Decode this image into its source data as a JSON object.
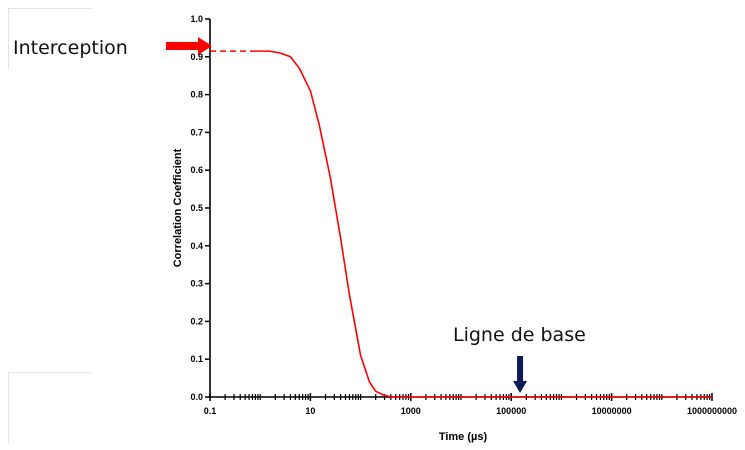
{
  "chart_data": {
    "type": "line",
    "xlabel": "Time (µs)",
    "ylabel": "Correlation Coefficient",
    "x_scale": "log",
    "xlim": [
      0.1,
      1000000000
    ],
    "ylim": [
      0.0,
      1.0
    ],
    "x_ticks": [
      0.1,
      10,
      1000,
      100000,
      10000000,
      1000000000
    ],
    "x_tick_labels": [
      "0.1",
      "10",
      "1000",
      "100000",
      "10000000",
      "1000000000"
    ],
    "y_ticks": [
      0.0,
      0.1,
      0.2,
      0.3,
      0.4,
      0.5,
      0.6,
      0.7,
      0.8,
      0.9,
      1.0
    ],
    "y_tick_labels": [
      "0.0",
      "0.1",
      "0.2",
      "0.3",
      "0.4",
      "0.5",
      "0.6",
      "0.7",
      "0.8",
      "0.9",
      "1.0"
    ],
    "grid": false,
    "series": [
      {
        "color": "#ff0000",
        "dashed_segment": {
          "x": [
            0.1,
            0.8
          ],
          "y": [
            0.915,
            0.915
          ]
        },
        "x": [
          0.8,
          1.5,
          2.5,
          4,
          6,
          10,
          15,
          25,
          40,
          60,
          100,
          150,
          200,
          300,
          400,
          500,
          700,
          1000,
          1000000000
        ],
        "y": [
          0.915,
          0.915,
          0.91,
          0.9,
          0.87,
          0.81,
          0.72,
          0.58,
          0.42,
          0.27,
          0.11,
          0.04,
          0.015,
          0.004,
          0.001,
          0.0,
          0.0,
          0.0,
          0.0
        ]
      }
    ]
  },
  "annotations": {
    "intercept": {
      "label": "Interception",
      "arrow_color": "#ff0000"
    },
    "baseline": {
      "label": "Ligne de base",
      "arrow_color": "#0d1a57",
      "x": 150000
    }
  }
}
